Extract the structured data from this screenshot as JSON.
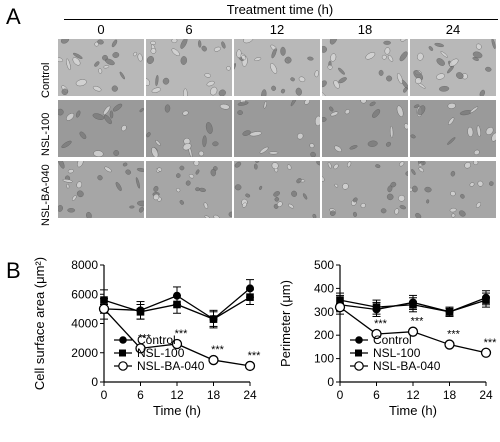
{
  "panel_a": {
    "letter": "A",
    "header": "Treatment time (h)",
    "time_points": [
      "0",
      "6",
      "12",
      "18",
      "24"
    ],
    "rows": [
      "Control",
      "NSL-100",
      "NSL-BA-040"
    ]
  },
  "panel_b": {
    "letter": "B"
  },
  "chart_data": [
    {
      "type": "line",
      "xlabel": "Time (h)",
      "ylabel": "Cell surface area (μm²)",
      "x": [
        0,
        6,
        12,
        18,
        24
      ],
      "xlim": [
        0,
        24
      ],
      "ylim": [
        0,
        8000
      ],
      "yticks": [
        0,
        2000,
        4000,
        6000,
        8000
      ],
      "xticks": [
        0,
        6,
        12,
        18,
        24
      ],
      "legend_position": "bottom-left",
      "series": [
        {
          "name": "Control",
          "marker": "filled-circle",
          "values": [
            5000,
            4900,
            5900,
            4300,
            6400
          ],
          "errors": [
            700,
            600,
            600,
            500,
            600
          ]
        },
        {
          "name": "NSL-100",
          "marker": "filled-square",
          "values": [
            5600,
            4800,
            5300,
            4300,
            5800
          ],
          "errors": [
            700,
            500,
            600,
            600,
            500
          ]
        },
        {
          "name": "NSL-BA-040",
          "marker": "open-circle",
          "values": [
            5000,
            2300,
            2600,
            1500,
            1100
          ],
          "errors": [
            300,
            200,
            200,
            150,
            150
          ]
        }
      ],
      "annotations": [
        {
          "x": 6,
          "y": 2300,
          "text": "***"
        },
        {
          "x": 12,
          "y": 2600,
          "text": "***"
        },
        {
          "x": 18,
          "y": 1500,
          "text": "***"
        },
        {
          "x": 24,
          "y": 1100,
          "text": "***"
        }
      ]
    },
    {
      "type": "line",
      "xlabel": "Time (h)",
      "ylabel": "Perimeter (μm)",
      "x": [
        0,
        6,
        12,
        18,
        24
      ],
      "xlim": [
        0,
        24
      ],
      "ylim": [
        0,
        500
      ],
      "yticks": [
        0,
        100,
        200,
        300,
        400,
        500
      ],
      "xticks": [
        0,
        6,
        12,
        18,
        24
      ],
      "legend_position": "bottom-left",
      "series": [
        {
          "name": "Control",
          "marker": "filled-circle",
          "values": [
            330,
            310,
            340,
            300,
            360
          ],
          "errors": [
            40,
            30,
            30,
            15,
            30
          ]
        },
        {
          "name": "NSL-100",
          "marker": "filled-square",
          "values": [
            350,
            320,
            330,
            300,
            350
          ],
          "errors": [
            30,
            30,
            30,
            20,
            30
          ]
        },
        {
          "name": "NSL-BA-040",
          "marker": "open-circle",
          "values": [
            320,
            205,
            215,
            160,
            125
          ],
          "errors": [
            15,
            10,
            10,
            10,
            10
          ]
        }
      ],
      "annotations": [
        {
          "x": 6,
          "y": 205,
          "text": "***"
        },
        {
          "x": 12,
          "y": 215,
          "text": "***"
        },
        {
          "x": 18,
          "y": 160,
          "text": "***"
        },
        {
          "x": 24,
          "y": 125,
          "text": "***"
        }
      ]
    }
  ]
}
